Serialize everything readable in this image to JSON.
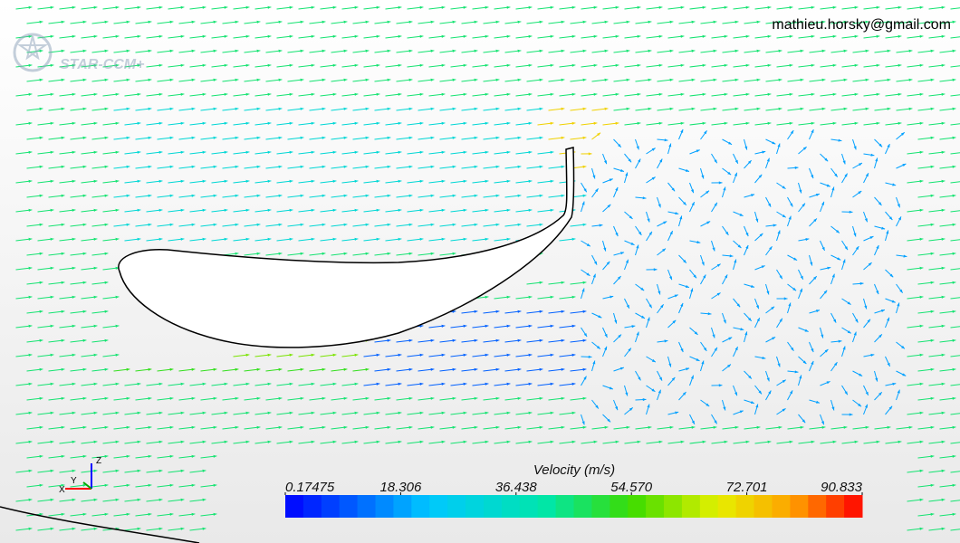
{
  "watermark": "mathieu.horsky@gmail.com",
  "logo": "STAR-CCM+",
  "axes_triad": {
    "z": "Z",
    "x": "X",
    "y": "Y"
  },
  "chart_data": {
    "type": "colorbar",
    "title": "Velocity (m/s)",
    "xlim": [
      0.17475,
      90.833
    ],
    "xticks": [
      {
        "value": 0.17475,
        "label": "0.17475"
      },
      {
        "value": 18.306,
        "label": "18.306"
      },
      {
        "value": 36.438,
        "label": "36.438"
      },
      {
        "value": 54.57,
        "label": "54.570"
      },
      {
        "value": 72.701,
        "label": "72.701"
      },
      {
        "value": 90.833,
        "label": "90.833"
      }
    ]
  }
}
